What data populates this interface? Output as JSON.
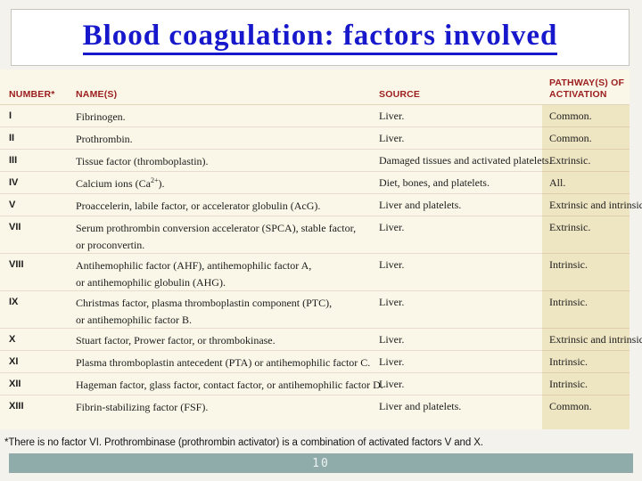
{
  "title": "Blood coagulation: factors involved",
  "footnote": "*There is no factor VI. Prothrombinase (prothrombin activator) is a combination of activated factors V and X.",
  "page_number": "10",
  "colors": {
    "title_blue": "#1717CB",
    "header_maroon": "#9B1D1D",
    "table_cream": "#FAF7E8",
    "pathway_tan": "#EEE5C2",
    "page_bar_teal": "#8FACAB"
  },
  "table": {
    "headers": [
      [
        "NUMBER*"
      ],
      [
        "NAME(S)"
      ],
      [
        "SOURCE"
      ],
      [
        "PATHWAY(S) OF",
        "ACTIVATION"
      ]
    ],
    "rows": [
      {
        "number": "I",
        "name": [
          [
            "Fibrinogen."
          ]
        ],
        "source": "Liver.",
        "pathway": "Common."
      },
      {
        "number": "II",
        "name": [
          [
            "Prothrombin."
          ]
        ],
        "source": "Liver.",
        "pathway": "Common."
      },
      {
        "number": "III",
        "name": [
          [
            "Tissue factor (thromboplastin)."
          ]
        ],
        "source": "Damaged tissues and activated platelets.",
        "pathway": "Extrinsic."
      },
      {
        "number": "IV",
        "name": [
          [
            "Calcium ions (Ca",
            {
              "sup": "2+"
            },
            ")."
          ]
        ],
        "source": "Diet, bones, and platelets.",
        "pathway": "All."
      },
      {
        "number": "V",
        "name": [
          [
            "Proaccelerin, labile factor, or accelerator globulin (AcG)."
          ]
        ],
        "source": "Liver and platelets.",
        "pathway": "Extrinsic and intrinsic."
      },
      {
        "number": "VII",
        "name": [
          [
            "Serum prothrombin conversion accelerator (SPCA), stable factor,"
          ],
          [
            "or proconvertin."
          ]
        ],
        "source": "Liver.",
        "pathway": "Extrinsic."
      },
      {
        "number": "VIII",
        "name": [
          [
            "Antihemophilic factor (AHF), antihemophilic factor A,"
          ],
          [
            "or antihemophilic globulin (AHG)."
          ]
        ],
        "source": "Liver.",
        "pathway": "Intrinsic."
      },
      {
        "number": "IX",
        "name": [
          [
            "Christmas factor, plasma thromboplastin component (PTC),"
          ],
          [
            "or antihemophilic factor B."
          ]
        ],
        "source": "Liver.",
        "pathway": "Intrinsic."
      },
      {
        "number": "X",
        "name": [
          [
            "Stuart factor, Prower factor, or thrombokinase."
          ]
        ],
        "source": "Liver.",
        "pathway": "Extrinsic and intrinsic."
      },
      {
        "number": "XI",
        "name": [
          [
            "Plasma thromboplastin antecedent (PTA) or antihemophilic factor C."
          ]
        ],
        "source": "Liver.",
        "pathway": "Intrinsic."
      },
      {
        "number": "XII",
        "name": [
          [
            "Hageman factor, glass factor, contact factor, or antihemophilic factor D."
          ]
        ],
        "source": "Liver.",
        "pathway": "Intrinsic."
      },
      {
        "number": "XIII",
        "name": [
          [
            "Fibrin-stabilizing factor (FSF)."
          ]
        ],
        "source": "Liver and platelets.",
        "pathway": "Common."
      }
    ]
  }
}
